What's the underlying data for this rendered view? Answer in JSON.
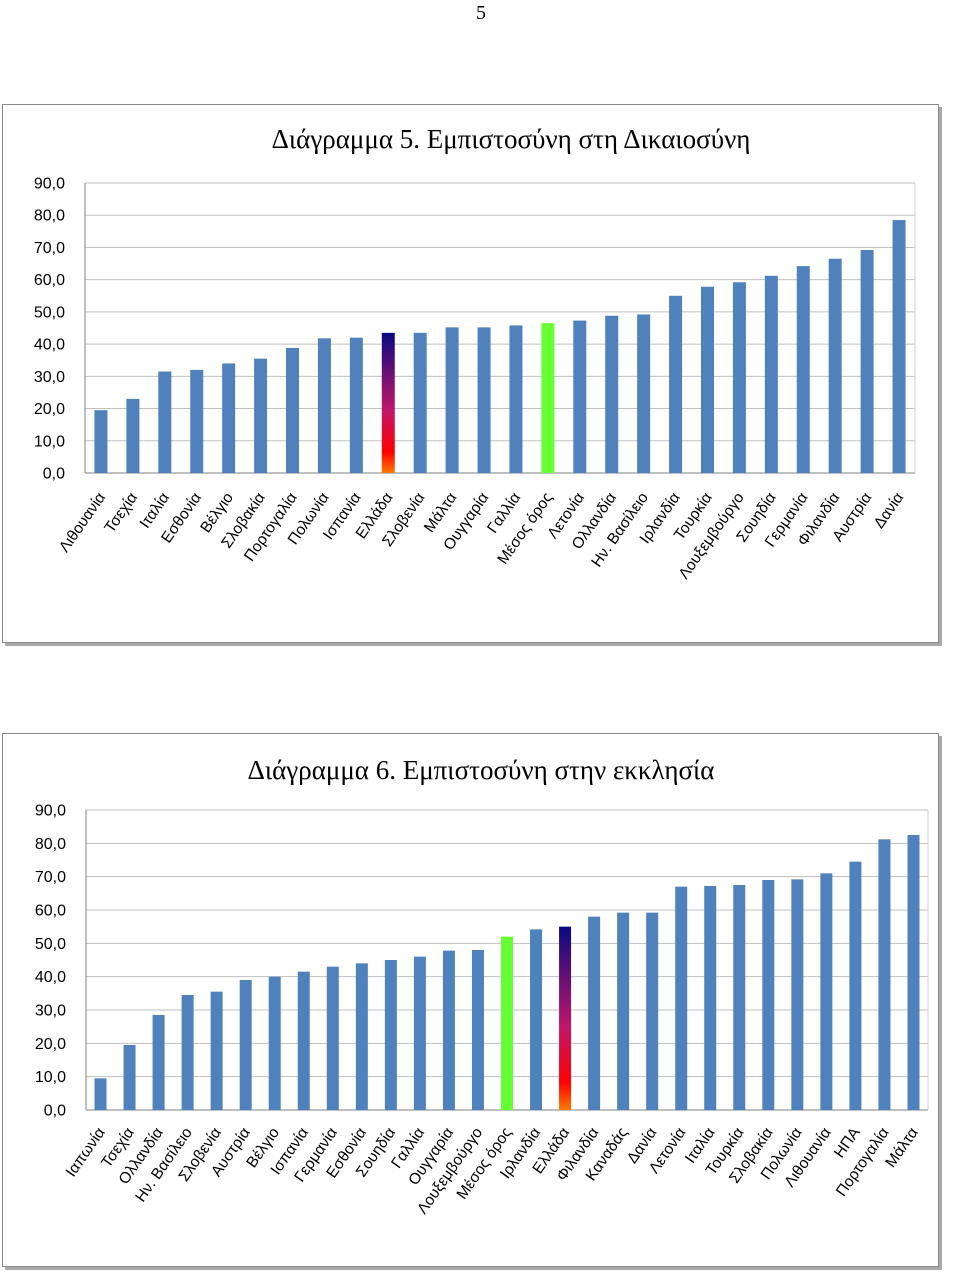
{
  "page": {
    "number": "5"
  },
  "colors": {
    "bar": "#4F81BD",
    "average": "#66FF33",
    "greece_top": "#0A0A80",
    "greece_mid": "#C0166A",
    "greece_bottom": "#FF7A00",
    "grid": "#BFBFBF"
  },
  "chart_data": [
    {
      "type": "bar",
      "title": "Διάγραμμα 5. Εμπιστοσύνη στη Δικαιοσύνη",
      "ylim": [
        0,
        90
      ],
      "yticks": [
        "0,0",
        "10,0",
        "20,0",
        "30,0",
        "40,0",
        "50,0",
        "60,0",
        "70,0",
        "80,0",
        "90,0"
      ],
      "grid": true,
      "categories": [
        "Λιθουανία",
        "Τσεχία",
        "Ιταλία",
        "Εσθονία",
        "Βέλγιο",
        "Σλοβακία",
        "Πορτογαλία",
        "Πολωνία",
        "Ισπανία",
        "Ελλάδα",
        "Σλοβενία",
        "Μάλτα",
        "Ουγγαρία",
        "Γαλλία",
        "Μέσος όρος",
        "Λετονία",
        "Ολλανδία",
        "Ην. Βασίλειο",
        "Ιρλανδία",
        "Τουρκία",
        "Λουξεμβούργο",
        "Σουηδία",
        "Γερμανία",
        "Φιλανδία",
        "Αυστρία",
        "Δανία"
      ],
      "values": [
        19.5,
        23.0,
        31.5,
        32.0,
        34.0,
        35.5,
        38.8,
        41.8,
        42.0,
        43.5,
        43.5,
        45.2,
        45.2,
        45.8,
        46.5,
        47.3,
        48.8,
        49.2,
        55.0,
        57.8,
        59.2,
        61.2,
        64.2,
        66.5,
        69.2,
        78.5
      ],
      "highlight_average": "Μέσος όρος",
      "highlight_country": "Ελλάδα"
    },
    {
      "type": "bar",
      "title": "Διάγραμμα 6. Εμπιστοσύνη στην εκκλησία",
      "ylim": [
        0,
        90
      ],
      "yticks": [
        "0,0",
        "10,0",
        "20,0",
        "30,0",
        "40,0",
        "50,0",
        "60,0",
        "70,0",
        "80,0",
        "90,0"
      ],
      "grid": true,
      "categories": [
        "Ιαπωνία",
        "Τσεχία",
        "Ολλανδία",
        "Ην. Βασίλειο",
        "Σλοβενία",
        "Αυστρία",
        "Βέλγιο",
        "Ισπανία",
        "Γερμανία",
        "Εσθονία",
        "Σουηδία",
        "Γαλλία",
        "Ουγγαρία",
        "Λουξεμβούργο",
        "Μέσος όρος",
        "Ιρλανδία",
        "Ελλάδα",
        "Φιλανδία",
        "Καναδάς",
        "Δανία",
        "Λετονία",
        "Ιταλία",
        "Τουρκία",
        "Σλοβακία",
        "Πολωνία",
        "Λιθουανία",
        "ΗΠΑ",
        "Πορτογαλία",
        "Μάλτα"
      ],
      "values": [
        9.5,
        19.5,
        28.5,
        34.5,
        35.5,
        39.0,
        40.0,
        41.5,
        43.0,
        44.0,
        45.0,
        46.0,
        47.8,
        48.0,
        52.0,
        54.2,
        55.0,
        58.0,
        59.2,
        59.2,
        67.0,
        67.2,
        67.5,
        69.0,
        69.2,
        71.0,
        74.5,
        81.2,
        82.5
      ],
      "highlight_average": "Μέσος όρος",
      "highlight_country": "Ελλάδα"
    }
  ]
}
